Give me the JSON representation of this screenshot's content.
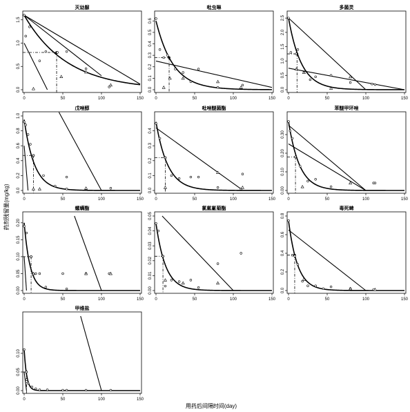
{
  "figure": {
    "xlabel": "用药后间隔时间(day)",
    "ylabel": "药剂残留量(mg/kg)"
  },
  "chart_data": [
    {
      "type": "scatter",
      "title": "灭幼脲",
      "xlim": [
        0,
        150
      ],
      "ylim": [
        0,
        1.6
      ],
      "xticks": [
        "0",
        "50",
        "100",
        "150"
      ],
      "yticks": [
        "0.0",
        "0.5",
        "1.0",
        "1.5"
      ],
      "ytick_values": [
        0,
        0.5,
        1.0,
        1.5
      ],
      "curve": {
        "c0": 1.6,
        "k": 0.018
      },
      "lines": [
        [
          [
            0,
            1.6
          ],
          [
            100,
            0.3
          ]
        ],
        [
          [
            0,
            1.0
          ],
          [
            30,
            0
          ]
        ],
        [
          [
            0,
            1.6
          ],
          [
            150,
            0.12
          ]
        ]
      ],
      "guide": {
        "x": 42,
        "y": 0.8
      },
      "circles": [
        [
          0,
          1.6
        ],
        [
          2,
          1.15
        ],
        [
          7,
          1.35
        ],
        [
          20,
          0.62
        ],
        [
          28,
          0.82
        ],
        [
          43,
          0.8
        ],
        [
          55,
          0.82
        ],
        [
          80,
          0.45
        ],
        [
          110,
          0.06
        ]
      ],
      "triangles": [
        [
          12,
          0.02
        ],
        [
          48,
          0.28
        ],
        [
          80,
          0.38
        ],
        [
          112,
          0.1
        ]
      ]
    },
    {
      "type": "scatter",
      "title": "吡虫啉",
      "xlim": [
        0,
        150
      ],
      "ylim": [
        0,
        0.65
      ],
      "xticks": [
        "0",
        "50",
        "100",
        "150"
      ],
      "yticks": [
        "0.0",
        "0.1",
        "0.2",
        "0.3",
        "0.4",
        "0.5",
        "0.6"
      ],
      "ytick_values": [
        0,
        0.1,
        0.2,
        0.3,
        0.4,
        0.5,
        0.6
      ],
      "curve": {
        "c0": 0.6,
        "k": 0.045
      },
      "lines": [
        [
          [
            0,
            0.25
          ],
          [
            150,
            0.02
          ]
        ]
      ],
      "guide": {
        "x": 17,
        "y": 0.28
      },
      "circles": [
        [
          0,
          0.62
        ],
        [
          5,
          0.35
        ],
        [
          10,
          0.28
        ],
        [
          15,
          0.3
        ],
        [
          25,
          0.18
        ],
        [
          35,
          0.15
        ],
        [
          45,
          0.07
        ],
        [
          55,
          0.18
        ],
        [
          80,
          0.02
        ],
        [
          112,
          0.04
        ]
      ],
      "triangles": [
        [
          10,
          0.02
        ],
        [
          18,
          0.1
        ],
        [
          35,
          0.1
        ],
        [
          80,
          0.07
        ],
        [
          110,
          0.02
        ]
      ]
    },
    {
      "type": "scatter",
      "title": "多菌灵",
      "xlim": [
        0,
        150
      ],
      "ylim": [
        0,
        2.6
      ],
      "xticks": [
        "0",
        "50",
        "100",
        "150"
      ],
      "yticks": [
        "0.0",
        "0.5",
        "1.0",
        "1.5",
        "2.0",
        "2.5"
      ],
      "ytick_values": [
        0,
        0.5,
        1.0,
        1.5,
        2.0,
        2.5
      ],
      "curve": {
        "c0": 2.5,
        "k": 0.06
      },
      "lines": [
        [
          [
            0,
            2.5
          ],
          [
            100,
            0
          ]
        ],
        [
          [
            0,
            0.75
          ],
          [
            150,
            0
          ]
        ]
      ],
      "guide": {
        "x": 11,
        "y": 1.25
      },
      "circles": [
        [
          0,
          2.5
        ],
        [
          3,
          1.3
        ],
        [
          10,
          1.25
        ],
        [
          12,
          1.4
        ],
        [
          20,
          0.62
        ],
        [
          28,
          0.35
        ],
        [
          35,
          0.45
        ],
        [
          55,
          0.5
        ],
        [
          80,
          0.25
        ],
        [
          108,
          0.2
        ],
        [
          112,
          0.18
        ]
      ],
      "triangles": [
        [
          10,
          0.72
        ],
        [
          20,
          0.6
        ],
        [
          55,
          0.05
        ],
        [
          80,
          0.45
        ]
      ]
    },
    {
      "type": "scatter",
      "title": "戊唑醇",
      "xlim": [
        0,
        150
      ],
      "ylim": [
        0,
        1.0
      ],
      "xticks": [
        "0",
        "50",
        "100",
        "150"
      ],
      "yticks": [
        "0.0",
        "0.2",
        "0.4",
        "0.6",
        "0.8",
        "1.0"
      ],
      "ytick_values": [
        0,
        0.2,
        0.4,
        0.6,
        0.8,
        1.0
      ],
      "curve": {
        "c0": 0.95,
        "k": 0.075
      },
      "lines": [
        [
          [
            0,
            0.6
          ],
          [
            5,
            0
          ]
        ],
        [
          [
            45,
            1.05
          ],
          [
            100,
            0
          ]
        ]
      ],
      "guide": {
        "x": 12,
        "y": 0.47
      },
      "circles": [
        [
          0,
          0.92
        ],
        [
          2,
          0.88
        ],
        [
          5,
          0.75
        ],
        [
          8,
          0.62
        ],
        [
          12,
          0.47
        ],
        [
          25,
          0.2
        ],
        [
          40,
          0.06
        ],
        [
          55,
          0.02
        ],
        [
          55,
          0.18
        ],
        [
          80,
          0.02
        ],
        [
          112,
          0.03
        ]
      ],
      "triangles": [
        [
          12,
          0.02
        ],
        [
          20,
          0.02
        ],
        [
          80,
          0.03
        ]
      ]
    },
    {
      "type": "scatter",
      "title": "吡唑醚菌酯",
      "xlim": [
        0,
        150
      ],
      "ylim": [
        0,
        0.5
      ],
      "xticks": [
        "0",
        "50",
        "100",
        "150"
      ],
      "yticks": [
        "0.0",
        "0.1",
        "0.2",
        "0.3",
        "0.4"
      ],
      "ytick_values": [
        0,
        0.1,
        0.2,
        0.3,
        0.4
      ],
      "curve": {
        "c0": 0.46,
        "k": 0.065
      },
      "lines": [
        [
          [
            0,
            0.42
          ],
          [
            110,
            0.01
          ]
        ]
      ],
      "guide": {
        "x": 12,
        "y": 0.22
      },
      "circles": [
        [
          0,
          0.45
        ],
        [
          5,
          0.35
        ],
        [
          12,
          0.22
        ],
        [
          20,
          0.1
        ],
        [
          30,
          0.08
        ],
        [
          45,
          0.09
        ],
        [
          55,
          0.09
        ],
        [
          80,
          0.02
        ],
        [
          110,
          0.01
        ],
        [
          112,
          0.11
        ]
      ],
      "triangles": [
        [
          12,
          0.02
        ],
        [
          80,
          0.12
        ],
        [
          112,
          0.02
        ]
      ]
    },
    {
      "type": "scatter",
      "title": "苯醚甲环唑",
      "xlim": [
        0,
        150
      ],
      "ylim": [
        0,
        0.4
      ],
      "xticks": [
        "0",
        "50",
        "100",
        "150"
      ],
      "yticks": [
        "0.00",
        "0.10",
        "0.20",
        "0.30"
      ],
      "ytick_values": [
        0,
        0.1,
        0.2,
        0.3
      ],
      "curve": {
        "c0": 0.37,
        "k": 0.07
      },
      "lines": [
        [
          [
            0,
            0.35
          ],
          [
            100,
            0
          ]
        ],
        [
          [
            0,
            0.25
          ],
          [
            100,
            0
          ]
        ]
      ],
      "guide": {
        "x": 9,
        "y": 0.18
      },
      "circles": [
        [
          0,
          0.37
        ],
        [
          2,
          0.32
        ],
        [
          5,
          0.28
        ],
        [
          9,
          0.18
        ],
        [
          15,
          0.13
        ],
        [
          25,
          0.05
        ],
        [
          35,
          0.06
        ],
        [
          55,
          0.02
        ],
        [
          110,
          0.04
        ],
        [
          112,
          0.04
        ]
      ],
      "triangles": [
        [
          18,
          0.02
        ],
        [
          80,
          0.04
        ]
      ]
    },
    {
      "type": "scatter",
      "title": "螺螨酯",
      "xlim": [
        0,
        150
      ],
      "ylim": [
        0,
        0.22
      ],
      "xticks": [
        "0",
        "50",
        "100",
        "150"
      ],
      "yticks": [
        "0.00",
        "0.05",
        "0.10",
        "0.15",
        "0.20"
      ],
      "ytick_values": [
        0,
        0.05,
        0.1,
        0.15,
        0.2
      ],
      "curve": {
        "c0": 0.2,
        "k": 0.13
      },
      "lines": [
        [
          [
            0,
            0.1
          ],
          [
            3,
            0.0
          ]
        ],
        [
          [
            65,
            0.22
          ],
          [
            100,
            0
          ]
        ]
      ],
      "guide": {
        "x": 9,
        "y": 0.1
      },
      "circles": [
        [
          0,
          0.19
        ],
        [
          3,
          0.17
        ],
        [
          9,
          0.1
        ],
        [
          15,
          0.05
        ],
        [
          20,
          0.05
        ],
        [
          28,
          0.01
        ],
        [
          50,
          0.05
        ],
        [
          55,
          0.005
        ],
        [
          80,
          0.05
        ],
        [
          110,
          0.05
        ]
      ],
      "triangles": [
        [
          12,
          0.05
        ],
        [
          80,
          0.05
        ],
        [
          112,
          0.05
        ]
      ]
    },
    {
      "type": "scatter",
      "title": "氯氟氰菊酯",
      "xlim": [
        0,
        150
      ],
      "ylim": [
        0,
        0.05
      ],
      "xticks": [
        "0",
        "50",
        "100",
        "150"
      ],
      "yticks": [
        "0.00",
        "0.01",
        "0.02",
        "0.03",
        "0.04",
        "0.05"
      ],
      "ytick_values": [
        0,
        0.01,
        0.02,
        0.03,
        0.04,
        0.05
      ],
      "curve": {
        "c0": 0.045,
        "k": 0.08
      },
      "lines": [
        [
          [
            8,
            0.05
          ],
          [
            100,
            0
          ]
        ]
      ],
      "guide": {
        "x": 9,
        "y": 0.023
      },
      "circles": [
        [
          0,
          0.045
        ],
        [
          3,
          0.04
        ],
        [
          9,
          0.023
        ],
        [
          12,
          0.003
        ],
        [
          20,
          0.007
        ],
        [
          30,
          0.006
        ],
        [
          45,
          0.007
        ],
        [
          55,
          0.002
        ],
        [
          80,
          0.018
        ],
        [
          110,
          0.025
        ]
      ],
      "triangles": [
        [
          12,
          0.007
        ],
        [
          35,
          0.005
        ],
        [
          80,
          0.005
        ]
      ]
    },
    {
      "type": "scatter",
      "title": "毒死蜱",
      "xlim": [
        0,
        150
      ],
      "ylim": [
        0,
        0.8
      ],
      "xticks": [
        "0",
        "50",
        "100",
        "150"
      ],
      "yticks": [
        "0.0",
        "0.2",
        "0.4",
        "0.6",
        "0.8"
      ],
      "ytick_values": [
        0,
        0.2,
        0.4,
        0.6,
        0.8
      ],
      "curve": {
        "c0": 0.75,
        "k": 0.085
      },
      "lines": [
        [
          [
            0,
            0.65
          ],
          [
            100,
            0
          ]
        ]
      ],
      "guide": {
        "x": 8,
        "y": 0.38
      },
      "circles": [
        [
          0,
          0.75
        ],
        [
          5,
          0.38
        ],
        [
          8,
          0.37
        ],
        [
          12,
          0.28
        ],
        [
          18,
          0.1
        ],
        [
          25,
          0.05
        ],
        [
          35,
          0.05
        ],
        [
          45,
          0.02
        ],
        [
          55,
          0.04
        ],
        [
          80,
          0.02
        ],
        [
          110,
          0.01
        ]
      ],
      "triangles": [
        [
          20,
          0.12
        ],
        [
          80,
          0.02
        ],
        [
          112,
          0.01
        ]
      ]
    },
    {
      "type": "scatter",
      "title": "甲维盐",
      "xlim": [
        0,
        150
      ],
      "ylim": [
        0,
        0.2
      ],
      "xticks": [
        "0",
        "50",
        "100",
        "150"
      ],
      "yticks": [
        "0.00",
        "0.05",
        "0.10"
      ],
      "ytick_values": [
        0,
        0.05,
        0.1
      ],
      "curve": {
        "c0": 0.11,
        "k": 0.3
      },
      "lines": [
        [
          [
            0,
            0.05
          ],
          [
            3,
            0.0
          ]
        ],
        [
          [
            73,
            0.2
          ],
          [
            100,
            0
          ]
        ]
      ],
      "guide": {
        "x": 3,
        "y": 0.05
      },
      "circles": [
        [
          0,
          0.11
        ],
        [
          3,
          0.05
        ],
        [
          5,
          0.02
        ],
        [
          10,
          0.01
        ],
        [
          15,
          0.005
        ],
        [
          20,
          0.002
        ],
        [
          30,
          0.002
        ],
        [
          50,
          0.001
        ],
        [
          55,
          0.001
        ],
        [
          80,
          0.001
        ],
        [
          112,
          0.001
        ]
      ],
      "triangles": [
        [
          3,
          0.03
        ]
      ]
    }
  ]
}
